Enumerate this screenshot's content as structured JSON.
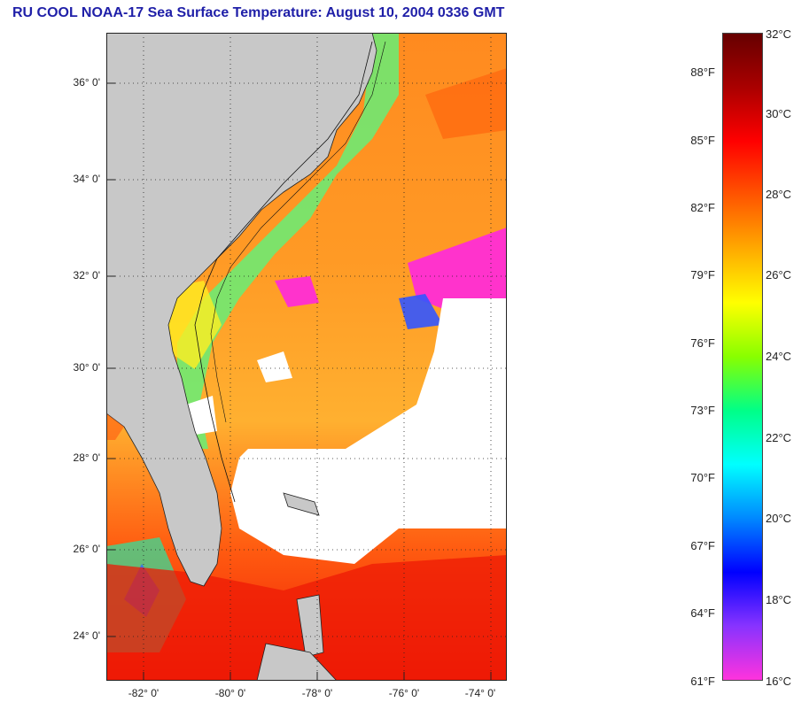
{
  "title": "RU COOL  NOAA-17  Sea Surface Temperature:  August 10, 2004 0336 GMT",
  "map": {
    "latitude_labels": [
      "36° 0'",
      "34° 0'",
      "32° 0'",
      "30° 0'",
      "28° 0'",
      "26° 0'",
      "24° 0'"
    ],
    "longitude_labels": [
      "-82° 0'",
      "-80° 0'",
      "-78° 0'",
      "-76° 0'",
      "-74° 0'"
    ],
    "land_color": "#c8c8c8",
    "cloud_color": "#ffffff",
    "grid": "dotted"
  },
  "colorbar": {
    "fahrenheit_labels": [
      "88°F",
      "85°F",
      "82°F",
      "79°F",
      "76°F",
      "73°F",
      "70°F",
      "67°F",
      "64°F",
      "61°F"
    ],
    "celsius_labels": [
      "32°C",
      "30°C",
      "28°C",
      "26°C",
      "24°C",
      "22°C",
      "20°C",
      "18°C",
      "16°C"
    ],
    "range_celsius": [
      16,
      32
    ],
    "colors": [
      "#ff33dd",
      "#8833ff",
      "#0000ff",
      "#0088ff",
      "#00ffff",
      "#00ff88",
      "#88ff00",
      "#ffff00",
      "#ffaa00",
      "#ff5500",
      "#ff0000",
      "#aa0000",
      "#660000"
    ]
  }
}
